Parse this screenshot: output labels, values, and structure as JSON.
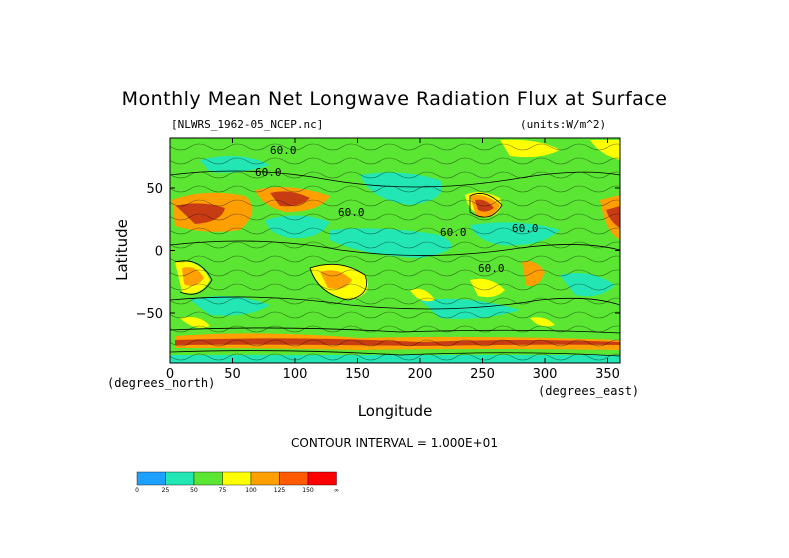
{
  "header": {
    "title": "Monthly Mean Net Longwave Radiation Flux at Surface",
    "file_label": "[NLWRS_1962-05_NCEP.nc]",
    "units_label": "(units:W/m^2)"
  },
  "footer": {
    "contour_interval": "CONTOUR INTERVAL = 1.000E+01"
  },
  "chart_data": {
    "type": "heatmap",
    "title": "Monthly Mean Net Longwave Radiation Flux at Surface",
    "xlabel": "Longitude",
    "ylabel": "Latitude",
    "x_unit_label": "(degrees_east)",
    "y_unit_label": "(degrees_north)",
    "xlim": [
      0,
      360
    ],
    "ylim": [
      -90,
      90
    ],
    "x_ticks": [
      0,
      50,
      100,
      150,
      200,
      250,
      300,
      350
    ],
    "y_ticks": [
      50,
      0,
      -50
    ],
    "contour_labels": [
      "60.0",
      "60.0",
      "60.0",
      "60.0",
      "60.0",
      "60.0"
    ],
    "colorbar": {
      "bins": [
        {
          "color": "#1ea0ff",
          "label": "0"
        },
        {
          "color": "#22e6b4",
          "label": "25"
        },
        {
          "color": "#5ae632",
          "label": "50"
        },
        {
          "color": "#ffff00",
          "label": "75"
        },
        {
          "color": "#ffa000",
          "label": "100"
        },
        {
          "color": "#ff5a00",
          "label": "125"
        },
        {
          "color": "#ff0000",
          "label": "150"
        }
      ],
      "end_label": "∞"
    },
    "colors": {
      "background_field": "#5ae632",
      "low": "#22e6b4",
      "mid_high": "#ffff00",
      "high": "#ffa000",
      "very_high": "#c83c14"
    }
  }
}
